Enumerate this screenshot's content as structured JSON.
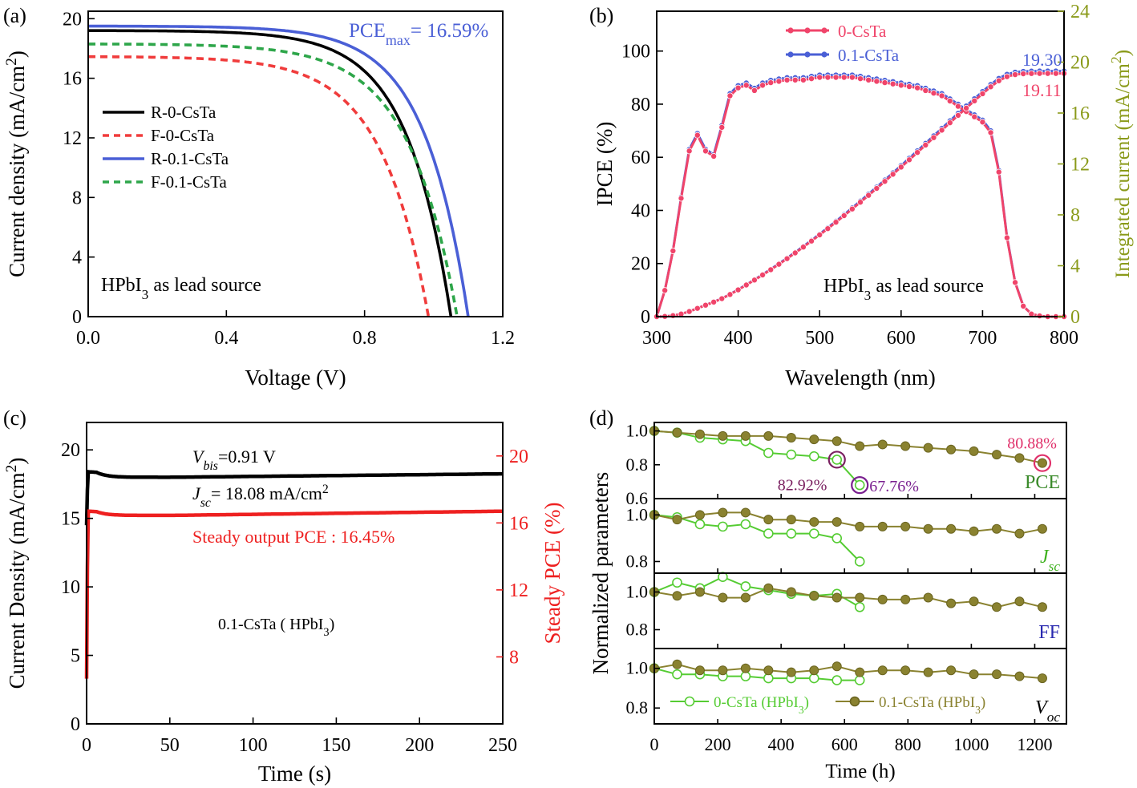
{
  "chart_data": [
    {
      "panel": "(a)",
      "type": "line",
      "xlabel": "Voltage (V)",
      "ylabel": "Current density (mA/cm²)",
      "xlim": [
        0,
        1.2
      ],
      "ylim": [
        0,
        20.5
      ],
      "xticks": [
        "0.0",
        "0.4",
        "0.8",
        "1.2"
      ],
      "yticks": [
        "0",
        "4",
        "8",
        "12",
        "16",
        "20"
      ],
      "annotation_pce": {
        "prefix": "PCE",
        "sub": "max",
        "value": "= 16.59%"
      },
      "annotation_source": {
        "prefix": "HPbI",
        "sub": "3",
        "suffix": " as lead source"
      },
      "legend_position": "center-left",
      "series": [
        {
          "name": "R-0-CsTa",
          "color": "#000000",
          "style": "solid",
          "jsc": 19.2,
          "voc": 1.05,
          "n": 8.2
        },
        {
          "name": "F-0-CsTa",
          "color": "#f03c3c",
          "style": "dashed",
          "jsc": 17.45,
          "voc": 0.985,
          "n": 7.2
        },
        {
          "name": "R-0.1-CsTa",
          "color": "#4a5fd6",
          "style": "solid",
          "jsc": 19.5,
          "voc": 1.1,
          "n": 8.6
        },
        {
          "name": "F-0.1-CsTa",
          "color": "#2ea64a",
          "style": "dashed",
          "jsc": 18.3,
          "voc": 1.068,
          "n": 7.6
        }
      ]
    },
    {
      "panel": "(b)",
      "type": "line",
      "xlabel": "Wavelength (nm)",
      "ylabel": "IPCE (%)",
      "y2label": "Integrated current (mA/cm²)",
      "xlim": [
        300,
        800
      ],
      "ylim": [
        0,
        115
      ],
      "y2lim": [
        0,
        24
      ],
      "xticks": [
        "300",
        "400",
        "500",
        "600",
        "700",
        "800"
      ],
      "yticks": [
        "0",
        "20",
        "40",
        "60",
        "80",
        "100"
      ],
      "y2ticks": [
        "0",
        "4",
        "8",
        "12",
        "16",
        "20",
        "24"
      ],
      "annotation_source": {
        "prefix": "HPbI",
        "sub": "3",
        "suffix": " as lead source"
      },
      "end_labels": [
        "19.30",
        "19.11"
      ],
      "ipce_points": [
        [
          300,
          0
        ],
        [
          310,
          10
        ],
        [
          320,
          25
        ],
        [
          330,
          45
        ],
        [
          340,
          63
        ],
        [
          350,
          69
        ],
        [
          360,
          63
        ],
        [
          370,
          61
        ],
        [
          380,
          72
        ],
        [
          390,
          84
        ],
        [
          400,
          87
        ],
        [
          410,
          88
        ],
        [
          420,
          86
        ],
        [
          430,
          88
        ],
        [
          440,
          89
        ],
        [
          460,
          90
        ],
        [
          480,
          90
        ],
        [
          500,
          91
        ],
        [
          520,
          91
        ],
        [
          540,
          91
        ],
        [
          560,
          90
        ],
        [
          580,
          89
        ],
        [
          600,
          88
        ],
        [
          620,
          87
        ],
        [
          640,
          85
        ],
        [
          650,
          84
        ],
        [
          660,
          82
        ],
        [
          670,
          80
        ],
        [
          680,
          78
        ],
        [
          690,
          76
        ],
        [
          700,
          74
        ],
        [
          710,
          70
        ],
        [
          720,
          55
        ],
        [
          730,
          30
        ],
        [
          740,
          13
        ],
        [
          750,
          4
        ],
        [
          760,
          1
        ],
        [
          770,
          0.3
        ],
        [
          780,
          0
        ],
        [
          800,
          0
        ]
      ],
      "series": [
        {
          "name": "0-CsTa",
          "color": "#f0446a",
          "jsc_final": 19.11,
          "ipce_scale": 0.99
        },
        {
          "name": "0.1-CsTa",
          "color": "#4a5fd6",
          "jsc_final": 19.3,
          "ipce_scale": 1.0
        }
      ]
    },
    {
      "panel": "(c)",
      "type": "line",
      "xlabel": "Time (s)",
      "ylabel": "Current Density (mA/cm²)",
      "y2label": "Steady PCE (%)",
      "xlim": [
        0,
        250
      ],
      "ylim": [
        0,
        22
      ],
      "y2lim": [
        4,
        22
      ],
      "xticks": [
        "0",
        "50",
        "100",
        "150",
        "200",
        "250"
      ],
      "yticks": [
        "0",
        "5",
        "10",
        "15",
        "20"
      ],
      "y2ticks": [
        "8",
        "12",
        "16",
        "20"
      ],
      "annotation_vbias": {
        "prefix": "V",
        "sub": "bis",
        "value": "=0.91 V"
      },
      "annotation_jsc": {
        "prefix": "J",
        "sub": "sc",
        "value": "= 18.08 mA/cm",
        "sup": "2"
      },
      "annotation_pce": "Steady output PCE : 16.45%",
      "annotation_device": {
        "prefix": "0.1-CsTa ( HPbI",
        "sub": "3",
        "suffix": ")"
      },
      "series": [
        {
          "name": "Current density",
          "color": "#000000",
          "steady": 18.0,
          "peak": 18.4
        },
        {
          "name": "Steady PCE",
          "color": "#ee2020",
          "steady": 16.45,
          "peak": 16.7
        }
      ]
    },
    {
      "panel": "(d)",
      "type": "line",
      "xlabel": "Time (h)",
      "ylabel": "Normalized  parameters",
      "xlim": [
        0,
        1300
      ],
      "xticks": [
        "0",
        "200",
        "400",
        "600",
        "800",
        "1000",
        "1200"
      ],
      "legend": [
        {
          "name": "0-CsTa (HPbI",
          "sub": "3",
          "suffix": ")",
          "color": "#55cc33",
          "marker": "open"
        },
        {
          "name": "0.1-CsTa (HPbI",
          "sub": "3",
          "suffix": ")",
          "color": "#8a8230",
          "marker": "filled"
        }
      ],
      "subplots": [
        {
          "label": "PCE",
          "sub": "",
          "label_color": "#3a8a2a",
          "italic": false,
          "ylim": [
            0.6,
            1.05
          ],
          "yticks": [
            "0.6",
            "0.8",
            "1.0"
          ],
          "series_0": [
            [
              0,
              1.0
            ],
            [
              72,
              0.99
            ],
            [
              144,
              0.96
            ],
            [
              216,
              0.95
            ],
            [
              288,
              0.94
            ],
            [
              360,
              0.87
            ],
            [
              432,
              0.86
            ],
            [
              504,
              0.85
            ],
            [
              576,
              0.83
            ],
            [
              648,
              0.68
            ]
          ],
          "series_01": [
            [
              0,
              1.0
            ],
            [
              72,
              0.99
            ],
            [
              144,
              0.98
            ],
            [
              216,
              0.97
            ],
            [
              288,
              0.97
            ],
            [
              360,
              0.97
            ],
            [
              432,
              0.96
            ],
            [
              504,
              0.95
            ],
            [
              576,
              0.94
            ],
            [
              648,
              0.91
            ],
            [
              720,
              0.92
            ],
            [
              792,
              0.91
            ],
            [
              864,
              0.9
            ],
            [
              936,
              0.89
            ],
            [
              1008,
              0.88
            ],
            [
              1080,
              0.86
            ],
            [
              1152,
              0.84
            ],
            [
              1224,
              0.81
            ]
          ],
          "callouts": [
            {
              "text": "82.92%",
              "x": 576,
              "y": 0.83,
              "color": "#7a2060"
            },
            {
              "text": "67.76%",
              "x": 648,
              "y": 0.68,
              "color": "#7a2090"
            },
            {
              "text": "80.88%",
              "x": 1224,
              "y": 0.81,
              "color": "#e0306a"
            }
          ]
        },
        {
          "label": "J",
          "sub": "sc",
          "label_color": "#3cb01c",
          "italic": true,
          "ylim": [
            0.75,
            1.07
          ],
          "yticks": [
            "0.8",
            "1.0"
          ],
          "series_0": [
            [
              0,
              1.0
            ],
            [
              72,
              0.99
            ],
            [
              144,
              0.96
            ],
            [
              216,
              0.95
            ],
            [
              288,
              0.96
            ],
            [
              360,
              0.92
            ],
            [
              432,
              0.92
            ],
            [
              504,
              0.92
            ],
            [
              576,
              0.9
            ],
            [
              648,
              0.8
            ]
          ],
          "series_01": [
            [
              0,
              1.0
            ],
            [
              72,
              0.98
            ],
            [
              144,
              1.0
            ],
            [
              216,
              1.01
            ],
            [
              288,
              1.01
            ],
            [
              360,
              0.98
            ],
            [
              432,
              0.98
            ],
            [
              504,
              0.97
            ],
            [
              576,
              0.97
            ],
            [
              648,
              0.95
            ],
            [
              720,
              0.95
            ],
            [
              792,
              0.95
            ],
            [
              864,
              0.94
            ],
            [
              936,
              0.94
            ],
            [
              1008,
              0.93
            ],
            [
              1080,
              0.94
            ],
            [
              1152,
              0.92
            ],
            [
              1224,
              0.94
            ]
          ],
          "callouts": []
        },
        {
          "label": "FF",
          "sub": "",
          "label_color": "#2a2ab0",
          "italic": false,
          "ylim": [
            0.7,
            1.1
          ],
          "yticks": [
            "0.8",
            "1.0"
          ],
          "series_0": [
            [
              0,
              1.0
            ],
            [
              72,
              1.05
            ],
            [
              144,
              1.02
            ],
            [
              216,
              1.08
            ],
            [
              288,
              1.03
            ],
            [
              360,
              1.01
            ],
            [
              432,
              0.99
            ],
            [
              504,
              0.98
            ],
            [
              576,
              0.99
            ],
            [
              648,
              0.92
            ]
          ],
          "series_01": [
            [
              0,
              1.0
            ],
            [
              72,
              0.98
            ],
            [
              144,
              1.0
            ],
            [
              216,
              0.97
            ],
            [
              288,
              0.97
            ],
            [
              360,
              1.02
            ],
            [
              432,
              1.0
            ],
            [
              504,
              0.98
            ],
            [
              576,
              0.97
            ],
            [
              648,
              0.97
            ],
            [
              720,
              0.96
            ],
            [
              792,
              0.96
            ],
            [
              864,
              0.97
            ],
            [
              936,
              0.94
            ],
            [
              1008,
              0.95
            ],
            [
              1080,
              0.92
            ],
            [
              1152,
              0.95
            ],
            [
              1224,
              0.92
            ]
          ],
          "callouts": []
        },
        {
          "label": "V",
          "sub": "oc",
          "label_color": "#000000",
          "italic": true,
          "ylim": [
            0.72,
            1.1
          ],
          "yticks": [
            "0.8",
            "1.0"
          ],
          "series_0": [
            [
              0,
              1.0
            ],
            [
              72,
              0.97
            ],
            [
              144,
              0.97
            ],
            [
              216,
              0.96
            ],
            [
              288,
              0.96
            ],
            [
              360,
              0.95
            ],
            [
              432,
              0.95
            ],
            [
              504,
              0.95
            ],
            [
              576,
              0.94
            ],
            [
              648,
              0.94
            ]
          ],
          "series_01": [
            [
              0,
              1.0
            ],
            [
              72,
              1.02
            ],
            [
              144,
              0.99
            ],
            [
              216,
              0.99
            ],
            [
              288,
              1.0
            ],
            [
              360,
              0.99
            ],
            [
              432,
              0.98
            ],
            [
              504,
              0.99
            ],
            [
              576,
              1.01
            ],
            [
              648,
              0.98
            ],
            [
              720,
              0.99
            ],
            [
              792,
              0.99
            ],
            [
              864,
              0.98
            ],
            [
              936,
              0.99
            ],
            [
              1008,
              0.97
            ],
            [
              1080,
              0.97
            ],
            [
              1152,
              0.96
            ],
            [
              1224,
              0.95
            ]
          ],
          "callouts": []
        }
      ]
    }
  ]
}
